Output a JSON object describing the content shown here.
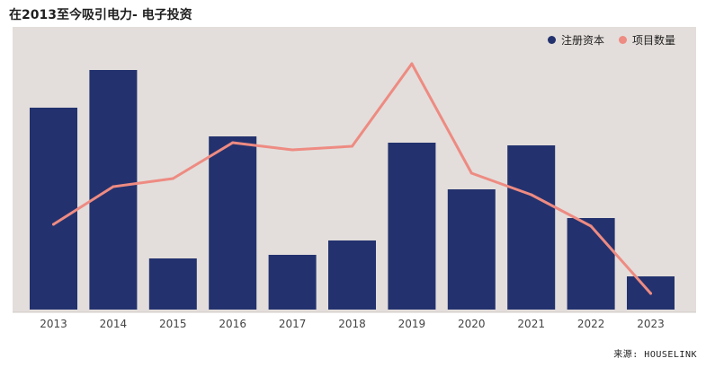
{
  "title": "在2013至今吸引电力- 电子投资",
  "source": "来源: HOUSELINK",
  "colors": {
    "background": "#e3dedb",
    "bar": "#23326e",
    "line": "#ee8b82"
  },
  "chart_data": {
    "type": "bar",
    "categories": [
      "2013",
      "2014",
      "2015",
      "2016",
      "2017",
      "2018",
      "2019",
      "2020",
      "2021",
      "2022",
      "2023"
    ],
    "series": [
      {
        "name": "注册资本",
        "type": "bar",
        "values": [
          225,
          267,
          57,
          193,
          61,
          77,
          186,
          134,
          183,
          102,
          37
        ]
      },
      {
        "name": "项目数量",
        "type": "line",
        "values": [
          95,
          137,
          146,
          186,
          178,
          182,
          274,
          152,
          128,
          93,
          18
        ]
      }
    ],
    "ylim": [
      0,
      285
    ],
    "grid": false,
    "legend_position": "top-right"
  }
}
